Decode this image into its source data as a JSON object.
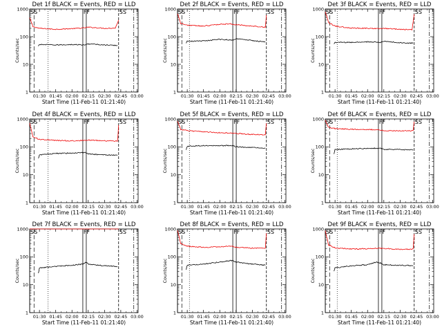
{
  "colors": {
    "events": "#000000",
    "lld": "#ee0000",
    "background": "#ffffff"
  },
  "chart_data": [
    {
      "type": "line",
      "title": "Det 1f  BLACK = Events, RED = LLD",
      "xlabel": "Start Time (11-Feb-11 01:21:40)",
      "ylabel": "Counts/sec",
      "x_ticks": [
        "01:30",
        "01:45",
        "02:00",
        "02:15",
        "02:30",
        "02:45",
        "03:00"
      ],
      "y_ticks": [
        "1",
        "10",
        "100",
        "1000"
      ],
      "y_scale": "log",
      "ylim": [
        1,
        1000
      ],
      "xlim": [
        "01:21",
        "03:01"
      ],
      "markers": [
        {
          "label": "SS",
          "time": "01:21"
        },
        {
          "label": "FF",
          "time": "02:10"
        },
        {
          "label": "SS",
          "time": "02:43"
        }
      ],
      "series": [
        {
          "color": "#ee0000",
          "points": [
            [
              "01:21",
              480
            ],
            [
              "01:24",
              230
            ],
            [
              "01:30",
              200
            ],
            [
              "01:45",
              185
            ],
            [
              "02:00",
              195
            ],
            [
              "02:10",
              205
            ],
            [
              "02:15",
              220
            ],
            [
              "02:30",
              200
            ],
            [
              "02:40",
              205
            ],
            [
              "02:43",
              400
            ]
          ]
        },
        {
          "color": "#000000",
          "points": [
            [
              "01:29",
              45
            ],
            [
              "01:30",
              52
            ],
            [
              "01:45",
              50
            ],
            [
              "02:00",
              52
            ],
            [
              "02:12",
              50
            ],
            [
              "02:15",
              55
            ],
            [
              "02:30",
              50
            ],
            [
              "02:42",
              48
            ]
          ]
        }
      ]
    },
    {
      "type": "line",
      "title": "Det 2f  BLACK = Events, RED = LLD",
      "xlabel": "Start Time (11-Feb-11 01:21:40)",
      "ylabel": "Counts/sec",
      "x_ticks": [
        "01:30",
        "01:45",
        "02:00",
        "02:15",
        "02:30",
        "02:45",
        "03:00"
      ],
      "y_ticks": [
        "1",
        "10",
        "100",
        "1000"
      ],
      "y_scale": "log",
      "ylim": [
        1,
        1000
      ],
      "xlim": [
        "01:21",
        "03:01"
      ],
      "markers": [
        {
          "label": "SS",
          "time": "01:21"
        },
        {
          "label": "FF",
          "time": "02:12"
        },
        {
          "label": "SS",
          "time": "02:43"
        }
      ],
      "series": [
        {
          "color": "#ee0000",
          "points": [
            [
              "01:21",
              700
            ],
            [
              "01:24",
              300
            ],
            [
              "01:30",
              260
            ],
            [
              "01:45",
              240
            ],
            [
              "02:00",
              280
            ],
            [
              "02:10",
              290
            ],
            [
              "02:15",
              270
            ],
            [
              "02:30",
              240
            ],
            [
              "02:42",
              220
            ],
            [
              "02:43",
              600
            ]
          ]
        },
        {
          "color": "#000000",
          "points": [
            [
              "01:29",
              60
            ],
            [
              "01:30",
              68
            ],
            [
              "01:45",
              70
            ],
            [
              "02:00",
              80
            ],
            [
              "02:12",
              75
            ],
            [
              "02:15",
              85
            ],
            [
              "02:30",
              72
            ],
            [
              "02:42",
              65
            ]
          ]
        }
      ]
    },
    {
      "type": "line",
      "title": "Det 3f  BLACK = Events, RED = LLD",
      "xlabel": "Start Time (11-Feb-11 01:21:40)",
      "ylabel": "Counts/sec",
      "x_ticks": [
        "01:30",
        "01:45",
        "02:00",
        "02:15",
        "02:30",
        "02:45",
        "03:00"
      ],
      "y_ticks": [
        "1",
        "10",
        "100",
        "1000"
      ],
      "y_scale": "log",
      "ylim": [
        1,
        1000
      ],
      "xlim": [
        "01:21",
        "03:01"
      ],
      "markers": [
        {
          "label": "SS",
          "time": "01:21"
        },
        {
          "label": "FF",
          "time": "02:10"
        },
        {
          "label": "SS",
          "time": "02:43"
        }
      ],
      "series": [
        {
          "color": "#ee0000",
          "points": [
            [
              "01:21",
              800
            ],
            [
              "01:24",
              320
            ],
            [
              "01:30",
              240
            ],
            [
              "01:45",
              205
            ],
            [
              "02:00",
              200
            ],
            [
              "02:10",
              195
            ],
            [
              "02:15",
              200
            ],
            [
              "02:30",
              185
            ],
            [
              "02:41",
              180
            ],
            [
              "02:43",
              650
            ]
          ]
        },
        {
          "color": "#000000",
          "points": [
            [
              "01:29",
              55
            ],
            [
              "01:30",
              62
            ],
            [
              "01:45",
              62
            ],
            [
              "02:00",
              65
            ],
            [
              "02:12",
              62
            ],
            [
              "02:15",
              68
            ],
            [
              "02:30",
              60
            ],
            [
              "02:42",
              58
            ]
          ]
        }
      ]
    },
    {
      "type": "line",
      "title": "Det 4f  BLACK = Events, RED = LLD",
      "xlabel": "Start Time (11-Feb-11 01:21:40)",
      "ylabel": "Counts/sec",
      "x_ticks": [
        "01:30",
        "01:45",
        "02:00",
        "02:15",
        "02:30",
        "02:45",
        "03:00"
      ],
      "y_ticks": [
        "1",
        "10",
        "100",
        "1000"
      ],
      "y_scale": "log",
      "ylim": [
        1,
        1000
      ],
      "xlim": [
        "01:21",
        "03:01"
      ],
      "markers": [
        {
          "label": "SS",
          "time": "01:21"
        },
        {
          "label": "FF",
          "time": "02:10"
        },
        {
          "label": "SS",
          "time": "02:43"
        }
      ],
      "series": [
        {
          "color": "#ee0000",
          "points": [
            [
              "01:21",
              700
            ],
            [
              "01:24",
              230
            ],
            [
              "01:30",
              185
            ],
            [
              "01:45",
              170
            ],
            [
              "02:00",
              165
            ],
            [
              "02:10",
              170
            ],
            [
              "02:15",
              175
            ],
            [
              "02:30",
              165
            ],
            [
              "02:42",
              160
            ],
            [
              "02:43",
              600
            ]
          ]
        },
        {
          "color": "#000000",
          "points": [
            [
              "01:29",
              38
            ],
            [
              "01:30",
              52
            ],
            [
              "01:45",
              58
            ],
            [
              "02:00",
              60
            ],
            [
              "02:12",
              62
            ],
            [
              "02:15",
              55
            ],
            [
              "02:30",
              52
            ],
            [
              "02:42",
              50
            ]
          ]
        }
      ]
    },
    {
      "type": "line",
      "title": "Det 5f  BLACK = Events, RED = LLD",
      "xlabel": "Start Time (11-Feb-11 01:21:40)",
      "ylabel": "Counts/sec",
      "x_ticks": [
        "01:30",
        "01:45",
        "02:00",
        "02:15",
        "02:30",
        "02:45",
        "03:00"
      ],
      "y_ticks": [
        "1",
        "10",
        "100",
        "1000"
      ],
      "y_scale": "log",
      "ylim": [
        1,
        1000
      ],
      "xlim": [
        "01:21",
        "03:01"
      ],
      "markers": [
        {
          "label": "SS",
          "time": "01:21"
        },
        {
          "label": "FF",
          "time": "02:12"
        },
        {
          "label": "SS",
          "time": "02:43"
        }
      ],
      "series": [
        {
          "color": "#ee0000",
          "points": [
            [
              "01:21",
              850
            ],
            [
              "01:24",
              420
            ],
            [
              "01:30",
              380
            ],
            [
              "01:45",
              350
            ],
            [
              "02:00",
              320
            ],
            [
              "02:12",
              310
            ],
            [
              "02:15",
              300
            ],
            [
              "02:30",
              280
            ],
            [
              "02:42",
              270
            ],
            [
              "02:43",
              700
            ]
          ]
        },
        {
          "color": "#000000",
          "points": [
            [
              "01:29",
              80
            ],
            [
              "01:30",
              105
            ],
            [
              "01:45",
              112
            ],
            [
              "02:00",
              110
            ],
            [
              "02:12",
              112
            ],
            [
              "02:15",
              100
            ],
            [
              "02:30",
              95
            ],
            [
              "02:42",
              90
            ]
          ]
        }
      ]
    },
    {
      "type": "line",
      "title": "Det 6f  BLACK = Events, RED = LLD",
      "xlabel": "Start Time (11-Feb-11 01:21:40)",
      "ylabel": "Counts/sec",
      "x_ticks": [
        "01:30",
        "01:45",
        "02:00",
        "02:15",
        "02:30",
        "02:45",
        "03:00"
      ],
      "y_ticks": [
        "1",
        "10",
        "100",
        "1000"
      ],
      "y_scale": "log",
      "ylim": [
        1,
        1000
      ],
      "xlim": [
        "01:21",
        "03:01"
      ],
      "markers": [
        {
          "label": "SS",
          "time": "01:21"
        },
        {
          "label": "FF",
          "time": "02:10"
        },
        {
          "label": "SS",
          "time": "02:43"
        }
      ],
      "series": [
        {
          "color": "#ee0000",
          "points": [
            [
              "01:21",
              900
            ],
            [
              "01:24",
              500
            ],
            [
              "01:30",
              450
            ],
            [
              "01:45",
              430
            ],
            [
              "02:00",
              420
            ],
            [
              "02:10",
              410
            ],
            [
              "02:15",
              380
            ],
            [
              "02:30",
              375
            ],
            [
              "02:42",
              380
            ],
            [
              "02:43",
              800
            ]
          ]
        },
        {
          "color": "#000000",
          "points": [
            [
              "01:29",
              55
            ],
            [
              "01:30",
              80
            ],
            [
              "01:45",
              85
            ],
            [
              "02:00",
              88
            ],
            [
              "02:12",
              90
            ],
            [
              "02:15",
              82
            ],
            [
              "02:30",
              80
            ],
            [
              "02:42",
              78
            ]
          ]
        }
      ]
    },
    {
      "type": "line",
      "title": "Det 7f  BLACK = Events, RED = LLD",
      "xlabel": "Start Time (11-Feb-11 01:21:40)",
      "ylabel": "Counts/sec",
      "x_ticks": [
        "01:30",
        "01:45",
        "02:00",
        "02:15",
        "02:30",
        "02:45",
        "03:00"
      ],
      "y_ticks": [
        "1",
        "10",
        "100",
        "1000"
      ],
      "y_scale": "log",
      "ylim": [
        1,
        1000
      ],
      "xlim": [
        "01:21",
        "03:01"
      ],
      "markers": [
        {
          "label": "SS",
          "time": "01:21"
        },
        {
          "label": "FF",
          "time": "02:10"
        },
        {
          "label": "SS",
          "time": "02:43"
        }
      ],
      "series": [
        {
          "color": "#ee0000",
          "points": [
            [
              "01:21",
              1000
            ],
            [
              "01:30",
              1000
            ],
            [
              "02:43",
              1000
            ]
          ]
        },
        {
          "color": "#000000",
          "points": [
            [
              "01:29",
              25
            ],
            [
              "01:30",
              40
            ],
            [
              "01:45",
              45
            ],
            [
              "02:00",
              50
            ],
            [
              "02:10",
              55
            ],
            [
              "02:13",
              65
            ],
            [
              "02:15",
              55
            ],
            [
              "02:30",
              48
            ],
            [
              "02:42",
              45
            ]
          ]
        }
      ]
    },
    {
      "type": "line",
      "title": "Det 8f  BLACK = Events, RED = LLD",
      "xlabel": "Start Time (11-Feb-11 01:21:40)",
      "ylabel": "Counts/sec",
      "x_ticks": [
        "01:30",
        "01:45",
        "02:00",
        "02:15",
        "02:30",
        "02:45",
        "03:00"
      ],
      "y_ticks": [
        "1",
        "10",
        "100",
        "1000"
      ],
      "y_scale": "log",
      "ylim": [
        1,
        1000
      ],
      "xlim": [
        "01:21",
        "03:01"
      ],
      "markers": [
        {
          "label": "SS",
          "time": "01:21"
        },
        {
          "label": "FF",
          "time": "02:12"
        },
        {
          "label": "SS",
          "time": "02:43"
        }
      ],
      "series": [
        {
          "color": "#ee0000",
          "points": [
            [
              "01:21",
              900
            ],
            [
              "01:24",
              300
            ],
            [
              "01:30",
              240
            ],
            [
              "01:45",
              220
            ],
            [
              "02:00",
              230
            ],
            [
              "02:12",
              240
            ],
            [
              "02:15",
              220
            ],
            [
              "02:30",
              205
            ],
            [
              "02:42",
              200
            ],
            [
              "02:43",
              700
            ]
          ]
        },
        {
          "color": "#000000",
          "points": [
            [
              "01:29",
              35
            ],
            [
              "01:30",
              50
            ],
            [
              "01:45",
              55
            ],
            [
              "02:00",
              65
            ],
            [
              "02:12",
              75
            ],
            [
              "02:15",
              65
            ],
            [
              "02:30",
              55
            ],
            [
              "02:42",
              50
            ]
          ]
        }
      ]
    },
    {
      "type": "line",
      "title": "Det 9f  BLACK = Events, RED = LLD",
      "xlabel": "Start Time (11-Feb-11 01:21:40)",
      "ylabel": "Counts/sec",
      "x_ticks": [
        "01:30",
        "01:45",
        "02:00",
        "02:15",
        "02:30",
        "02:45",
        "03:00"
      ],
      "y_ticks": [
        "1",
        "10",
        "100",
        "1000"
      ],
      "y_scale": "log",
      "ylim": [
        1,
        1000
      ],
      "xlim": [
        "01:21",
        "03:01"
      ],
      "markers": [
        {
          "label": "SS",
          "time": "01:21"
        },
        {
          "label": "FF",
          "time": "02:10"
        },
        {
          "label": "SS",
          "time": "02:43"
        }
      ],
      "series": [
        {
          "color": "#ee0000",
          "points": [
            [
              "01:21",
              850
            ],
            [
              "01:24",
              270
            ],
            [
              "01:30",
              210
            ],
            [
              "01:45",
              190
            ],
            [
              "02:00",
              195
            ],
            [
              "02:10",
              205
            ],
            [
              "02:15",
              200
            ],
            [
              "02:30",
              185
            ],
            [
              "02:42",
              190
            ],
            [
              "02:43",
              650
            ]
          ]
        },
        {
          "color": "#000000",
          "points": [
            [
              "01:29",
              30
            ],
            [
              "01:30",
              40
            ],
            [
              "01:45",
              48
            ],
            [
              "02:00",
              52
            ],
            [
              "02:08",
              65
            ],
            [
              "02:12",
              60
            ],
            [
              "02:15",
              52
            ],
            [
              "02:30",
              50
            ],
            [
              "02:42",
              48
            ]
          ]
        }
      ]
    }
  ]
}
